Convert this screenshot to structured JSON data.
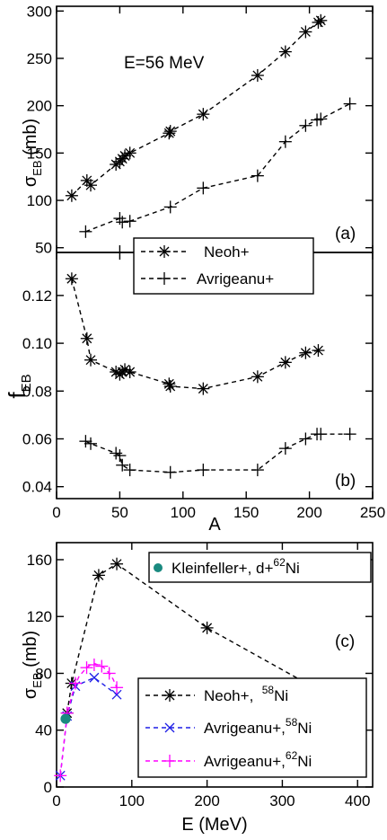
{
  "colors": {
    "neoh": "#000000",
    "avrigeanu_58": "#1f1fe6",
    "avrigeanu_62": "#ff00ff",
    "kleinfeller": "#1a8a80"
  },
  "chart_data": [
    {
      "panel": "a",
      "type": "line",
      "panel_label": "(a)",
      "annotation": "E=56 MeV",
      "ylabel_main": "σ",
      "ylabel_sub": "EB",
      "ylabel_unit": " (mb)",
      "xlim": [
        0,
        250
      ],
      "ylim": [
        45,
        305
      ],
      "yticks": [
        50,
        100,
        150,
        200,
        250,
        300
      ],
      "ytick_labels": [
        "50",
        "100",
        "150",
        "200",
        "250",
        "300"
      ],
      "series": [
        {
          "key": "neoh",
          "marker": "asterisk",
          "line": "dash",
          "x": [
            12,
            24,
            27,
            47,
            50,
            52,
            54,
            58,
            89,
            90,
            116,
            159,
            181,
            197,
            207,
            209
          ],
          "y": [
            105,
            121,
            116,
            138,
            141,
            144,
            147,
            150,
            171,
            173,
            191,
            232,
            257,
            278,
            288,
            290
          ]
        },
        {
          "key": "avrigeanu",
          "marker": "plus",
          "line": "dash",
          "x": [
            23,
            50,
            52,
            58,
            90,
            116,
            159,
            181,
            197,
            206,
            209,
            232
          ],
          "y": [
            67,
            81,
            77,
            78,
            93,
            113,
            126,
            162,
            179,
            185,
            186,
            202
          ]
        }
      ]
    },
    {
      "panel": "b",
      "type": "line",
      "panel_label": "(b)",
      "ylabel_main": "f",
      "ylabel_sub": "EB",
      "xlabel": "A",
      "xlim": [
        0,
        250
      ],
      "ylim": [
        0.035,
        0.138
      ],
      "xticks": [
        0,
        50,
        100,
        150,
        200,
        250
      ],
      "xtick_labels": [
        "0",
        "50",
        "100",
        "150",
        "200",
        "250"
      ],
      "yticks": [
        0.04,
        0.06,
        0.08,
        0.1,
        0.12
      ],
      "ytick_labels": [
        "0.04",
        "0.06",
        "0.08",
        "0.10",
        "0.12"
      ],
      "legend": {
        "placement": "top-center",
        "entries": [
          {
            "key": "neoh",
            "label": "Neoh+",
            "marker": "asterisk"
          },
          {
            "key": "avrigeanu",
            "label": "Avrigeanu+",
            "marker": "plus"
          }
        ]
      },
      "series": [
        {
          "key": "neoh",
          "marker": "asterisk",
          "line": "dash",
          "x": [
            12,
            24,
            27,
            47,
            50,
            52,
            54,
            58,
            89,
            90,
            116,
            159,
            181,
            197,
            207
          ],
          "y": [
            0.127,
            0.102,
            0.093,
            0.088,
            0.087,
            0.088,
            0.089,
            0.088,
            0.083,
            0.082,
            0.081,
            0.086,
            0.092,
            0.096,
            0.097
          ]
        },
        {
          "key": "avrigeanu",
          "marker": "plus",
          "line": "dash",
          "x": [
            23,
            27,
            47,
            50,
            52,
            58,
            90,
            116,
            159,
            181,
            197,
            206,
            209,
            232
          ],
          "y": [
            0.059,
            0.058,
            0.054,
            0.053,
            0.049,
            0.047,
            0.046,
            0.047,
            0.047,
            0.056,
            0.06,
            0.062,
            0.062,
            0.062
          ]
        }
      ]
    },
    {
      "panel": "c",
      "type": "line",
      "panel_label": "(c)",
      "ylabel_main": "σ",
      "ylabel_sub": "EB",
      "ylabel_unit": " (mb)",
      "xlabel": "E (MeV)",
      "xlim": [
        0,
        420
      ],
      "ylim": [
        0,
        172
      ],
      "xticks": [
        0,
        100,
        200,
        300,
        400
      ],
      "xtick_labels": [
        "0",
        "100",
        "200",
        "300",
        "400"
      ],
      "yticks": [
        0,
        40,
        80,
        120,
        160
      ],
      "ytick_labels": [
        "0",
        "40",
        "80",
        "120",
        "160"
      ],
      "legend_top": {
        "placement": "top-right",
        "entries": [
          {
            "key": "kleinfeller",
            "label": "Kleinfeller+, d+",
            "mass": "62",
            "element": "Ni",
            "marker": "dot"
          }
        ]
      },
      "legend": {
        "placement": "center-right",
        "entries": [
          {
            "key": "neoh",
            "label": "Neoh+,  ",
            "mass": "58",
            "element": "Ni",
            "marker": "asterisk"
          },
          {
            "key": "avrigeanu_58",
            "label": "Avrigeanu+,",
            "mass": "58",
            "element": "Ni",
            "marker": "cross"
          },
          {
            "key": "avrigeanu_62",
            "label": "Avrigeanu+,",
            "mass": "62",
            "element": "Ni",
            "marker": "plus"
          }
        ]
      },
      "series": [
        {
          "key": "neoh",
          "marker": "asterisk",
          "line": "dash",
          "x": [
            14,
            20,
            56,
            80,
            200,
            400
          ],
          "y": [
            52,
            73,
            149,
            157,
            112,
            53
          ]
        },
        {
          "key": "avrigeanu_58",
          "marker": "cross",
          "line": "dash",
          "x": [
            5,
            14,
            25,
            50,
            80
          ],
          "y": [
            8,
            50,
            71,
            77,
            65
          ]
        },
        {
          "key": "avrigeanu_62",
          "marker": "plus",
          "line": "dash",
          "x": [
            5,
            14,
            25,
            40,
            50,
            60,
            70,
            80
          ],
          "y": [
            8,
            52,
            73,
            84,
            86,
            85,
            80,
            70
          ],
          "curve_x": [
            5,
            10,
            14,
            20,
            25,
            30,
            35,
            40,
            45,
            50,
            55,
            60,
            65,
            70,
            75,
            80
          ],
          "curve_y": [
            8,
            32,
            50,
            64,
            72,
            78,
            81,
            84,
            86,
            87,
            86,
            85,
            83,
            80,
            76,
            70
          ]
        },
        {
          "key": "kleinfeller",
          "marker": "dot",
          "line": "none",
          "x": [
            12
          ],
          "y": [
            48
          ]
        }
      ]
    }
  ]
}
